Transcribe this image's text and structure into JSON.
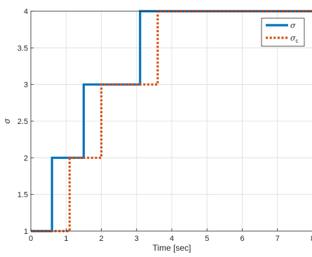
{
  "chart_data": {
    "type": "line",
    "xlabel": "Time [sec]",
    "ylabel": "σ",
    "xlim": [
      0,
      8
    ],
    "ylim": [
      1,
      4
    ],
    "xticks": [
      0,
      1,
      2,
      3,
      4,
      5,
      6,
      7,
      8
    ],
    "yticks": [
      1,
      1.5,
      2,
      2.5,
      3,
      3.5,
      4
    ],
    "xtick_labels": [
      "0",
      "1",
      "2",
      "3",
      "4",
      "5",
      "6",
      "7",
      "8"
    ],
    "ytick_labels": [
      "1",
      "1.5",
      "2",
      "2.5",
      "3",
      "3.5",
      "4"
    ],
    "grid": true,
    "legend_position": "top-right",
    "series": [
      {
        "name": "σ",
        "style": "solid",
        "color": "#0072BD",
        "x": [
          0,
          0.6,
          0.6,
          1.5,
          1.5,
          3.1,
          3.1,
          8
        ],
        "y": [
          1,
          1,
          2,
          2,
          3,
          3,
          4,
          4
        ]
      },
      {
        "name": "σ",
        "subscript": "c",
        "style": "dotted",
        "color": "#D95319",
        "x": [
          0,
          1.1,
          1.1,
          2.0,
          2.0,
          3.6,
          3.6,
          8
        ],
        "y": [
          1,
          1,
          2,
          2,
          3,
          3,
          4,
          4
        ]
      }
    ]
  }
}
